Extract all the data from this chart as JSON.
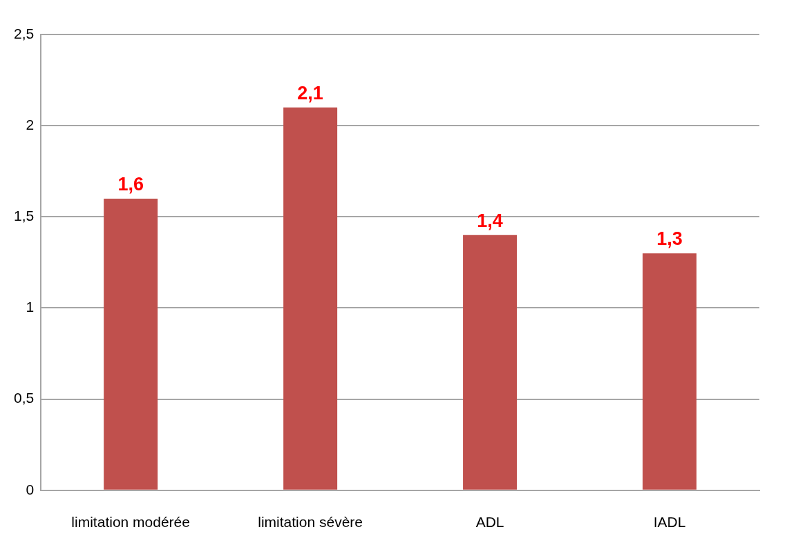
{
  "chart_data": {
    "type": "bar",
    "categories": [
      "limitation modérée",
      "limitation sévère",
      "ADL",
      "IADL"
    ],
    "values": [
      1.6,
      2.1,
      1.4,
      1.3
    ],
    "color": "#c0504d",
    "value_labels": [
      "1,6",
      "2,1",
      "1,4",
      "1,3"
    ],
    "ylim": [
      0,
      2.5
    ],
    "yticks": [
      {
        "value": 0,
        "label": "0"
      },
      {
        "value": 0.5,
        "label": "0,5"
      },
      {
        "value": 1,
        "label": "1"
      },
      {
        "value": 1.5,
        "label": "1,5"
      },
      {
        "value": 2,
        "label": "2"
      },
      {
        "value": 2.5,
        "label": "2,5"
      }
    ],
    "grid": "y",
    "legend": false
  }
}
